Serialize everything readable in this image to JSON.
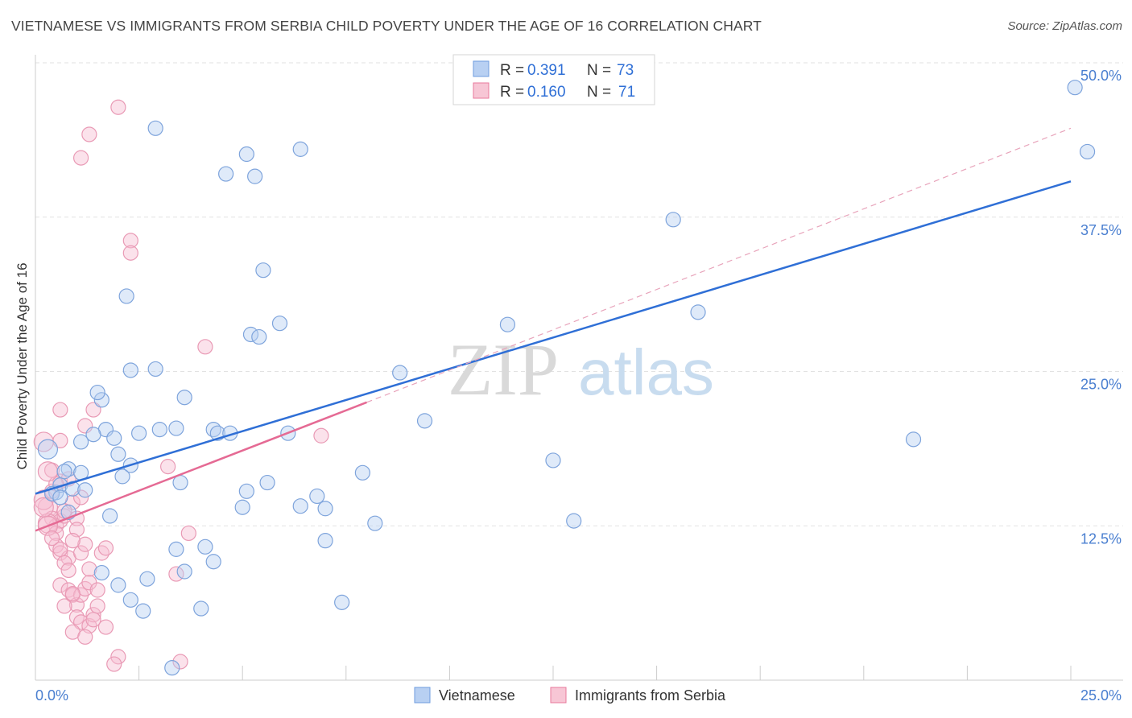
{
  "title": "VIETNAMESE VS IMMIGRANTS FROM SERBIA CHILD POVERTY UNDER THE AGE OF 16 CORRELATION CHART",
  "source": "Source: ZipAtlas.com",
  "watermark": {
    "zip": "ZIP",
    "atlas": "atlas"
  },
  "legend": {
    "r_label": "R =",
    "n_label": "N =",
    "rows": [
      {
        "r": "0.391",
        "n": "73"
      },
      {
        "r": "0.160",
        "n": "71"
      }
    ]
  },
  "chart_data": {
    "type": "scatter",
    "title": "VIETNAMESE VS IMMIGRANTS FROM SERBIA CHILD POVERTY UNDER THE AGE OF 16 CORRELATION CHART",
    "xlabel": "",
    "ylabel": "Child Poverty Under the Age of 16",
    "xlim": [
      0,
      25
    ],
    "ylim": [
      0,
      50
    ],
    "x_ticks": [
      "0.0%",
      "25.0%"
    ],
    "y_ticks": [
      "12.5%",
      "25.0%",
      "37.5%",
      "50.0%"
    ],
    "grid": true,
    "legend_position": "top-center",
    "colors": {
      "vietnamese": "#4a7fd0",
      "serbia": "#e8799c",
      "tick": "#4a7fd0"
    },
    "series": [
      {
        "name": "Vietnamese",
        "r": 0.391,
        "n": 73,
        "trend": {
          "x": [
            0,
            25
          ],
          "y": [
            15.1,
            40.4
          ],
          "dashed_extension": false
        },
        "points": [
          [
            0.5,
            15.2
          ],
          [
            0.8,
            17.1
          ],
          [
            0.6,
            15.8
          ],
          [
            0.9,
            15.5
          ],
          [
            1.1,
            16.8
          ],
          [
            0.7,
            16.9
          ],
          [
            1.2,
            15.4
          ],
          [
            0.4,
            15.1
          ],
          [
            0.6,
            14.8
          ],
          [
            0.8,
            13.6
          ],
          [
            1.7,
            20.3
          ],
          [
            1.9,
            19.6
          ],
          [
            2.0,
            18.3
          ],
          [
            1.4,
            19.9
          ],
          [
            2.5,
            20.0
          ],
          [
            2.3,
            17.4
          ],
          [
            2.1,
            16.5
          ],
          [
            1.6,
            22.7
          ],
          [
            1.5,
            23.3
          ],
          [
            1.8,
            13.3
          ],
          [
            3.4,
            20.4
          ],
          [
            3.5,
            16.0
          ],
          [
            3.6,
            22.9
          ],
          [
            3.0,
            20.3
          ],
          [
            4.3,
            20.3
          ],
          [
            4.4,
            20.0
          ],
          [
            4.7,
            20.0
          ],
          [
            3.4,
            10.6
          ],
          [
            3.6,
            8.8
          ],
          [
            4.1,
            10.8
          ],
          [
            5.2,
            28.0
          ],
          [
            5.9,
            28.9
          ],
          [
            5.1,
            15.3
          ],
          [
            5.6,
            16.0
          ],
          [
            6.1,
            20.0
          ],
          [
            5.0,
            14.0
          ],
          [
            4.3,
            9.6
          ],
          [
            2.7,
            8.2
          ],
          [
            2.3,
            6.5
          ],
          [
            2.0,
            7.7
          ],
          [
            6.4,
            14.1
          ],
          [
            7.0,
            13.9
          ],
          [
            7.0,
            11.3
          ],
          [
            8.2,
            12.7
          ],
          [
            7.9,
            16.8
          ],
          [
            6.8,
            14.9
          ],
          [
            4.0,
            5.8
          ],
          [
            2.6,
            5.6
          ],
          [
            1.6,
            8.7
          ],
          [
            3.3,
            1.0
          ],
          [
            2.9,
            25.2
          ],
          [
            2.3,
            25.1
          ],
          [
            2.2,
            31.1
          ],
          [
            2.9,
            44.7
          ],
          [
            4.6,
            41.0
          ],
          [
            5.3,
            40.8
          ],
          [
            5.1,
            42.6
          ],
          [
            6.4,
            43.0
          ],
          [
            5.5,
            33.2
          ],
          [
            5.4,
            27.8
          ],
          [
            8.8,
            24.9
          ],
          [
            9.4,
            21.0
          ],
          [
            11.4,
            28.8
          ],
          [
            12.5,
            17.8
          ],
          [
            13.0,
            12.9
          ],
          [
            15.4,
            37.3
          ],
          [
            16.0,
            29.8
          ],
          [
            21.2,
            19.5
          ],
          [
            25.1,
            48.0
          ],
          [
            25.4,
            42.8
          ],
          [
            0.3,
            18.7
          ],
          [
            1.1,
            19.3
          ],
          [
            7.4,
            6.3
          ]
        ]
      },
      {
        "name": "Immigrants from Serbia",
        "r": 0.16,
        "n": 71,
        "trend": {
          "x": [
            0,
            8.0
          ],
          "y": [
            12.1,
            22.5
          ],
          "extension_x": [
            8.0,
            25
          ],
          "extension_y": [
            22.5,
            44.7
          ]
        },
        "points": [
          [
            0.3,
            14.0
          ],
          [
            0.4,
            13.1
          ],
          [
            0.5,
            12.5
          ],
          [
            0.6,
            12.9
          ],
          [
            0.3,
            12.7
          ],
          [
            0.5,
            11.9
          ],
          [
            0.7,
            13.3
          ],
          [
            0.2,
            14.6
          ],
          [
            0.4,
            15.3
          ],
          [
            0.6,
            16.1
          ],
          [
            0.8,
            16.3
          ],
          [
            0.9,
            14.4
          ],
          [
            1.0,
            13.1
          ],
          [
            0.5,
            10.9
          ],
          [
            0.6,
            10.3
          ],
          [
            0.8,
            9.9
          ],
          [
            0.7,
            9.5
          ],
          [
            1.1,
            10.3
          ],
          [
            1.2,
            11.0
          ],
          [
            1.0,
            12.2
          ],
          [
            0.6,
            7.7
          ],
          [
            0.8,
            7.3
          ],
          [
            0.9,
            6.9
          ],
          [
            1.0,
            6.1
          ],
          [
            1.1,
            6.9
          ],
          [
            1.2,
            7.4
          ],
          [
            0.7,
            6.0
          ],
          [
            1.0,
            5.1
          ],
          [
            1.1,
            4.7
          ],
          [
            1.3,
            4.4
          ],
          [
            1.4,
            5.3
          ],
          [
            1.5,
            6.0
          ],
          [
            1.6,
            10.3
          ],
          [
            1.7,
            10.7
          ],
          [
            1.3,
            9.0
          ],
          [
            1.3,
            7.9
          ],
          [
            0.9,
            3.9
          ],
          [
            1.2,
            3.5
          ],
          [
            1.4,
            4.9
          ],
          [
            2.0,
            1.9
          ],
          [
            1.9,
            1.3
          ],
          [
            3.5,
            1.5
          ],
          [
            3.4,
            8.6
          ],
          [
            3.7,
            11.9
          ],
          [
            3.2,
            17.3
          ],
          [
            1.2,
            20.6
          ],
          [
            1.4,
            21.9
          ],
          [
            1.3,
            44.2
          ],
          [
            1.1,
            42.3
          ],
          [
            2.0,
            46.4
          ],
          [
            2.3,
            35.6
          ],
          [
            2.3,
            34.6
          ],
          [
            4.1,
            27.0
          ],
          [
            6.9,
            19.8
          ],
          [
            0.6,
            21.9
          ],
          [
            0.6,
            19.4
          ],
          [
            0.3,
            12.5
          ],
          [
            0.2,
            14.0
          ],
          [
            0.5,
            15.9
          ],
          [
            0.4,
            17.0
          ],
          [
            0.9,
            11.3
          ],
          [
            1.1,
            14.8
          ],
          [
            0.7,
            13.7
          ],
          [
            0.6,
            10.6
          ],
          [
            0.8,
            8.9
          ],
          [
            1.7,
            4.3
          ],
          [
            1.5,
            7.3
          ],
          [
            0.9,
            7.0
          ],
          [
            0.4,
            11.5
          ],
          [
            0.3,
            16.9
          ],
          [
            0.2,
            19.3
          ]
        ]
      }
    ]
  },
  "bottom_legend": {
    "series1": "Vietnamese",
    "series2": "Immigrants from Serbia"
  }
}
